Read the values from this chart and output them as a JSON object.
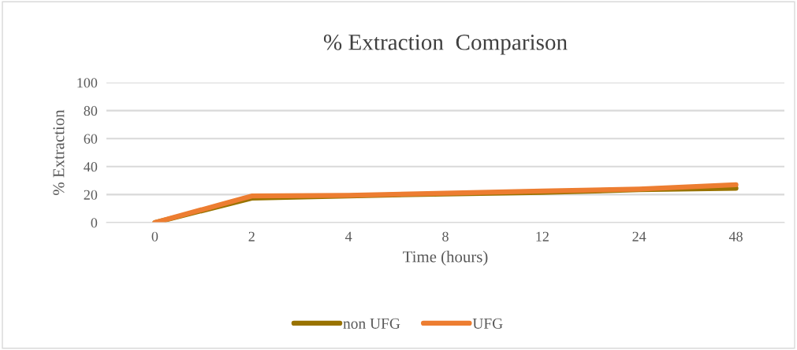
{
  "chart_data": {
    "type": "line",
    "title": "% Extraction  Comparison",
    "xlabel": "Time (hours)",
    "ylabel": "% Extraction",
    "categories": [
      "0",
      "2",
      "4",
      "8",
      "12",
      "24",
      "48"
    ],
    "series": [
      {
        "name": "non UFG",
        "color": "#997300",
        "values": [
          0,
          17.5,
          19,
          20.5,
          21.5,
          23.5,
          24.5
        ]
      },
      {
        "name": "UFG",
        "color": "#ed7d31",
        "values": [
          0,
          19,
          19.5,
          21,
          22.5,
          24,
          27
        ]
      }
    ],
    "ylim": [
      0,
      100
    ],
    "yticks": [
      0,
      20,
      40,
      60,
      80,
      100
    ],
    "grid": "y",
    "legend": "bottom",
    "marker": "none",
    "line_style": "solid"
  }
}
